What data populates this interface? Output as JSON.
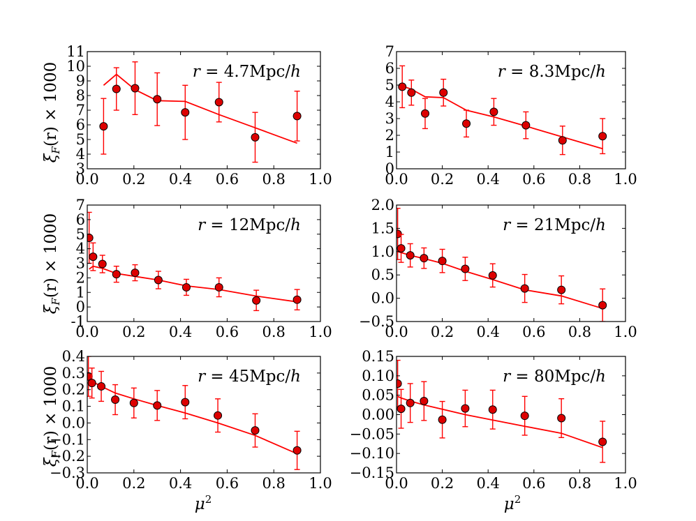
{
  "figure": {
    "ylabel_main": "ξ",
    "ylabel_sub": "F",
    "ylabel_rest": "(r) × 1000",
    "xlabel_main": "μ",
    "xlabel_sup": "2"
  },
  "chart_data": [
    {
      "type": "scatter",
      "annotation": "r = 4.7Mpc/h",
      "xlim": [
        0.0,
        1.0
      ],
      "ylim": [
        3,
        11
      ],
      "xticks": [
        0.0,
        0.2,
        0.4,
        0.6,
        0.8,
        1.0
      ],
      "yticks": [
        3,
        4,
        5,
        6,
        7,
        8,
        9,
        10,
        11
      ],
      "points": [
        {
          "x": 0.07,
          "y": 5.9,
          "err": 1.9
        },
        {
          "x": 0.125,
          "y": 8.45,
          "err": 1.45
        },
        {
          "x": 0.205,
          "y": 8.5,
          "err": 1.8
        },
        {
          "x": 0.3,
          "y": 7.75,
          "err": 1.8
        },
        {
          "x": 0.42,
          "y": 6.85,
          "err": 1.85
        },
        {
          "x": 0.565,
          "y": 7.55,
          "err": 1.35
        },
        {
          "x": 0.72,
          "y": 5.15,
          "err": 1.7
        },
        {
          "x": 0.9,
          "y": 6.6,
          "err": 1.7
        }
      ],
      "model": [
        [
          0.07,
          8.7
        ],
        [
          0.125,
          9.45
        ],
        [
          0.205,
          8.4
        ],
        [
          0.3,
          7.65
        ],
        [
          0.42,
          7.6
        ],
        [
          0.565,
          6.7
        ],
        [
          0.72,
          5.8
        ],
        [
          0.9,
          4.75
        ]
      ]
    },
    {
      "type": "scatter",
      "annotation": "r = 8.3Mpc/h",
      "xlim": [
        0.0,
        1.0
      ],
      "ylim": [
        0,
        7
      ],
      "xticks": [
        0.0,
        0.2,
        0.4,
        0.6,
        0.8,
        1.0
      ],
      "yticks": [
        0,
        1,
        2,
        3,
        4,
        5,
        6,
        7
      ],
      "points": [
        {
          "x": 0.025,
          "y": 4.9,
          "err": 1.25
        },
        {
          "x": 0.065,
          "y": 4.55,
          "err": 0.75
        },
        {
          "x": 0.125,
          "y": 3.3,
          "err": 0.9
        },
        {
          "x": 0.205,
          "y": 4.55,
          "err": 0.8
        },
        {
          "x": 0.305,
          "y": 2.7,
          "err": 0.8
        },
        {
          "x": 0.425,
          "y": 3.4,
          "err": 0.8
        },
        {
          "x": 0.565,
          "y": 2.6,
          "err": 0.8
        },
        {
          "x": 0.725,
          "y": 1.7,
          "err": 0.85
        },
        {
          "x": 0.9,
          "y": 1.95,
          "err": 1.05
        }
      ],
      "model": [
        [
          0.025,
          4.95
        ],
        [
          0.065,
          4.75
        ],
        [
          0.125,
          4.3
        ],
        [
          0.205,
          4.25
        ],
        [
          0.305,
          3.5
        ],
        [
          0.425,
          3.1
        ],
        [
          0.565,
          2.55
        ],
        [
          0.725,
          1.9
        ],
        [
          0.9,
          1.2
        ]
      ]
    },
    {
      "type": "scatter",
      "annotation": "r = 12Mpc/h",
      "xlim": [
        0.0,
        1.0
      ],
      "ylim": [
        -1,
        7
      ],
      "xticks": [
        0.0,
        0.2,
        0.4,
        0.6,
        0.8,
        1.0
      ],
      "yticks": [
        -1,
        0,
        1,
        2,
        3,
        4,
        5,
        6,
        7
      ],
      "points": [
        {
          "x": 0.008,
          "y": 4.75,
          "err": 1.75
        },
        {
          "x": 0.025,
          "y": 3.45,
          "err": 0.95
        },
        {
          "x": 0.065,
          "y": 2.95,
          "err": 0.6
        },
        {
          "x": 0.125,
          "y": 2.25,
          "err": 0.55
        },
        {
          "x": 0.205,
          "y": 2.35,
          "err": 0.55
        },
        {
          "x": 0.305,
          "y": 1.85,
          "err": 0.6
        },
        {
          "x": 0.425,
          "y": 1.35,
          "err": 0.55
        },
        {
          "x": 0.565,
          "y": 1.35,
          "err": 0.65
        },
        {
          "x": 0.725,
          "y": 0.45,
          "err": 0.7
        },
        {
          "x": 0.9,
          "y": 0.5,
          "err": 0.7
        }
      ],
      "model": [
        [
          0.008,
          2.6
        ],
        [
          0.025,
          2.8
        ],
        [
          0.065,
          2.65
        ],
        [
          0.125,
          2.3
        ],
        [
          0.205,
          2.1
        ],
        [
          0.305,
          1.85
        ],
        [
          0.425,
          1.45
        ],
        [
          0.565,
          1.2
        ],
        [
          0.725,
          0.75
        ],
        [
          0.9,
          0.35
        ]
      ]
    },
    {
      "type": "scatter",
      "annotation": "r = 21Mpc/h",
      "xlim": [
        0.0,
        1.0
      ],
      "ylim": [
        -0.5,
        2.0
      ],
      "xticks": [
        0.0,
        0.2,
        0.4,
        0.6,
        0.8,
        1.0
      ],
      "yticks": [
        -0.5,
        0.0,
        0.5,
        1.0,
        1.5,
        2.0
      ],
      "ytick_labels": [
        "−0.5",
        "0.0",
        "0.5",
        "1.0",
        "1.5",
        "2.0"
      ],
      "points": [
        {
          "x": 0.005,
          "y": 1.38,
          "err": 0.55
        },
        {
          "x": 0.02,
          "y": 1.07,
          "err": 0.3
        },
        {
          "x": 0.06,
          "y": 0.92,
          "err": 0.25
        },
        {
          "x": 0.12,
          "y": 0.86,
          "err": 0.22
        },
        {
          "x": 0.2,
          "y": 0.8,
          "err": 0.25
        },
        {
          "x": 0.3,
          "y": 0.63,
          "err": 0.25
        },
        {
          "x": 0.42,
          "y": 0.49,
          "err": 0.25
        },
        {
          "x": 0.56,
          "y": 0.21,
          "err": 0.3
        },
        {
          "x": 0.72,
          "y": 0.18,
          "err": 0.3
        },
        {
          "x": 0.9,
          "y": -0.15,
          "err": 0.35
        }
      ],
      "model": [
        [
          0.005,
          1.0
        ],
        [
          0.02,
          0.98
        ],
        [
          0.06,
          0.92
        ],
        [
          0.12,
          0.85
        ],
        [
          0.2,
          0.75
        ],
        [
          0.3,
          0.58
        ],
        [
          0.42,
          0.4
        ],
        [
          0.56,
          0.18
        ],
        [
          0.72,
          0.05
        ],
        [
          0.9,
          -0.22
        ]
      ]
    },
    {
      "type": "scatter",
      "annotation": "r = 45Mpc/h",
      "xlim": [
        0.0,
        1.0
      ],
      "ylim": [
        -0.3,
        0.4
      ],
      "xticks": [
        0.0,
        0.2,
        0.4,
        0.6,
        0.8,
        1.0
      ],
      "yticks": [
        -0.3,
        -0.2,
        -0.1,
        0.0,
        0.1,
        0.2,
        0.3,
        0.4
      ],
      "ytick_labels": [
        "−0.3",
        "−0.2",
        "−0.1",
        "0.0",
        "0.1",
        "0.2",
        "0.3",
        "0.4"
      ],
      "points": [
        {
          "x": 0.005,
          "y": 0.28,
          "err": 0.12
        },
        {
          "x": 0.02,
          "y": 0.24,
          "err": 0.09
        },
        {
          "x": 0.06,
          "y": 0.22,
          "err": 0.09
        },
        {
          "x": 0.12,
          "y": 0.14,
          "err": 0.09
        },
        {
          "x": 0.2,
          "y": 0.12,
          "err": 0.09
        },
        {
          "x": 0.3,
          "y": 0.105,
          "err": 0.09
        },
        {
          "x": 0.42,
          "y": 0.125,
          "err": 0.1
        },
        {
          "x": 0.56,
          "y": 0.045,
          "err": 0.1
        },
        {
          "x": 0.72,
          "y": -0.045,
          "err": 0.1
        },
        {
          "x": 0.9,
          "y": -0.165,
          "err": 0.115
        }
      ],
      "model": [
        [
          0.005,
          0.26
        ],
        [
          0.02,
          0.25
        ],
        [
          0.06,
          0.22
        ],
        [
          0.12,
          0.18
        ],
        [
          0.2,
          0.145
        ],
        [
          0.3,
          0.105
        ],
        [
          0.42,
          0.06
        ],
        [
          0.56,
          0.0
        ],
        [
          0.72,
          -0.075
        ],
        [
          0.9,
          -0.185
        ]
      ]
    },
    {
      "type": "scatter",
      "annotation": "r = 80Mpc/h",
      "xlim": [
        0.0,
        1.0
      ],
      "ylim": [
        -0.15,
        0.15
      ],
      "xticks": [
        0.0,
        0.2,
        0.4,
        0.6,
        0.8,
        1.0
      ],
      "yticks": [
        -0.15,
        -0.1,
        -0.05,
        0.0,
        0.05,
        0.1,
        0.15
      ],
      "ytick_labels": [
        "−0.15",
        "−0.10",
        "−0.05",
        "0.00",
        "0.05",
        "0.10",
        "0.15"
      ],
      "points": [
        {
          "x": 0.005,
          "y": 0.08,
          "err": 0.06
        },
        {
          "x": 0.02,
          "y": 0.015,
          "err": 0.05
        },
        {
          "x": 0.06,
          "y": 0.03,
          "err": 0.05
        },
        {
          "x": 0.12,
          "y": 0.035,
          "err": 0.05
        },
        {
          "x": 0.2,
          "y": -0.013,
          "err": 0.047
        },
        {
          "x": 0.3,
          "y": 0.016,
          "err": 0.047
        },
        {
          "x": 0.42,
          "y": 0.013,
          "err": 0.05
        },
        {
          "x": 0.56,
          "y": -0.003,
          "err": 0.05
        },
        {
          "x": 0.72,
          "y": -0.009,
          "err": 0.05
        },
        {
          "x": 0.9,
          "y": -0.07,
          "err": 0.053
        }
      ],
      "model": [
        [
          0.005,
          0.047
        ],
        [
          0.02,
          0.043
        ],
        [
          0.06,
          0.035
        ],
        [
          0.12,
          0.025
        ],
        [
          0.2,
          0.014
        ],
        [
          0.3,
          0.0
        ],
        [
          0.42,
          -0.014
        ],
        [
          0.56,
          -0.03
        ],
        [
          0.72,
          -0.048
        ],
        [
          0.9,
          -0.085
        ]
      ]
    }
  ]
}
